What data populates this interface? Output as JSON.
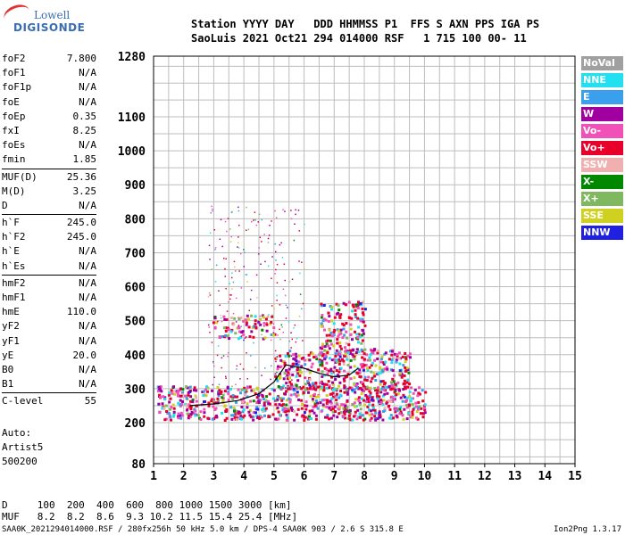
{
  "logo": {
    "line1": "Lowell",
    "line2": "DIGISONDE"
  },
  "header": {
    "line1": "Station YYYY DAY   DDD HHMMSS P1  FFS S AXN PPS IGA PS",
    "line2": "SaoLuis 2021 Oct21 294 014000 RSF   1 715 100 00- 11"
  },
  "params": [
    {
      "label": "foF2",
      "value": "7.800"
    },
    {
      "label": "foF1",
      "value": "N/A"
    },
    {
      "label": "foF1p",
      "value": "N/A"
    },
    {
      "label": "foE",
      "value": "N/A"
    },
    {
      "label": "foEp",
      "value": "0.35"
    },
    {
      "label": "fxI",
      "value": "8.25"
    },
    {
      "label": "foEs",
      "value": "N/A"
    },
    {
      "label": "fmin",
      "value": "1.85"
    },
    {
      "label": "MUF(D)",
      "value": "25.36",
      "sep": true
    },
    {
      "label": "M(D)",
      "value": "3.25"
    },
    {
      "label": "D",
      "value": "N/A"
    },
    {
      "label": "h`F",
      "value": "245.0",
      "sep": true
    },
    {
      "label": "h`F2",
      "value": "245.0"
    },
    {
      "label": "h`E",
      "value": "N/A"
    },
    {
      "label": "h`Es",
      "value": "N/A"
    },
    {
      "label": "hmF2",
      "value": "N/A",
      "sep": true
    },
    {
      "label": "hmF1",
      "value": "N/A"
    },
    {
      "label": "hmE",
      "value": "110.0"
    },
    {
      "label": "yF2",
      "value": "N/A"
    },
    {
      "label": "yF1",
      "value": "N/A"
    },
    {
      "label": "yE",
      "value": "20.0"
    },
    {
      "label": "B0",
      "value": "N/A"
    },
    {
      "label": "B1",
      "value": "N/A"
    },
    {
      "label": "C-level",
      "value": "55",
      "sep": true
    }
  ],
  "autoscale": {
    "line1": "Auto:",
    "line2": "Artist5",
    "line3": "500200"
  },
  "legend": [
    {
      "label": "NoVal",
      "color": "#a0a0a0"
    },
    {
      "label": "NNE",
      "color": "#22e0f0"
    },
    {
      "label": "E",
      "color": "#3aa0ee"
    },
    {
      "label": "W",
      "color": "#a000a0"
    },
    {
      "label": "Vo-",
      "color": "#f050b8"
    },
    {
      "label": "Vo+",
      "color": "#e8002a"
    },
    {
      "label": "SSW",
      "color": "#f0b0b0"
    },
    {
      "label": "X-",
      "color": "#008800"
    },
    {
      "label": "X+",
      "color": "#80b860"
    },
    {
      "label": "SSE",
      "color": "#d0d020"
    },
    {
      "label": "NNW",
      "color": "#2020e0"
    }
  ],
  "footer": {
    "line1": "D     100  200  400  600  800 1000 1500 3000 [km]",
    "line2": "MUF   8.2  8.2  8.6  9.3 10.2 11.5 15.4 25.4 [MHz]",
    "source": "SAA0K_2021294014000.RSF / 280fx256h 50 kHz 5.0 km / DPS-4 SAA0K 903 / 2.6 S 315.8 E",
    "version": "Ion2Png 1.3.17"
  },
  "chart_data": {
    "type": "scatter",
    "xlim": [
      1,
      15
    ],
    "x_ticks": [
      1,
      2,
      3,
      4,
      5,
      6,
      7,
      8,
      9,
      10,
      11,
      12,
      13,
      14,
      15
    ],
    "y_ticks": [
      80,
      200,
      300,
      400,
      500,
      600,
      700,
      800,
      900,
      1000,
      1100,
      1280
    ],
    "y_scale": "mixed (compressed between 80-200, linear 200-1100, compressed 1100-1280)",
    "grid": true,
    "xlabel": "",
    "ylabel": "",
    "clusters": [
      {
        "x_range": [
          1.1,
          10.0
        ],
        "y_range": [
          210,
          310
        ],
        "density": 0.95,
        "note": "dense main echo band"
      },
      {
        "x_range": [
          5.0,
          9.5
        ],
        "y_range": [
          300,
          420
        ],
        "density": 0.8
      },
      {
        "x_range": [
          2.9,
          5.0
        ],
        "y_range": [
          450,
          520
        ],
        "density": 0.6
      },
      {
        "x_range": [
          2.8,
          6.0
        ],
        "y_range": [
          300,
          840
        ],
        "density": 0.15,
        "note": "sparse spread-F"
      },
      {
        "x_range": [
          6.5,
          8.0
        ],
        "y_range": [
          400,
          560
        ],
        "density": 0.7
      }
    ],
    "trace": {
      "x": [
        2.2,
        3.0,
        3.8,
        4.5,
        5.0,
        5.4,
        6.0,
        6.5,
        7.0,
        7.5,
        7.8
      ],
      "y": [
        250,
        255,
        265,
        285,
        320,
        370,
        360,
        345,
        335,
        340,
        360
      ]
    }
  }
}
